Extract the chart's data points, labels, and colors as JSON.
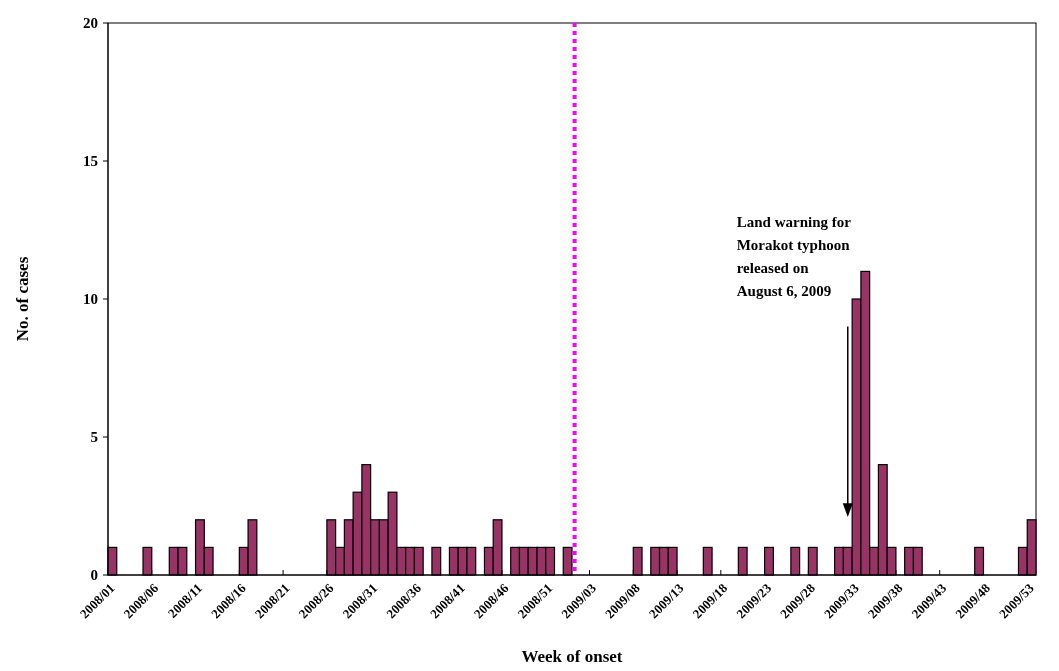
{
  "chart_data": {
    "type": "bar",
    "xlabel": "Week of onset",
    "ylabel": "No. of cases",
    "categories": [
      "2008/01",
      null,
      null,
      null,
      null,
      "2008/06",
      null,
      null,
      null,
      null,
      "2008/11",
      null,
      null,
      null,
      null,
      "2008/16",
      null,
      null,
      null,
      null,
      "2008/21",
      null,
      null,
      null,
      null,
      "2008/26",
      null,
      null,
      null,
      null,
      "2008/31",
      null,
      null,
      null,
      null,
      "2008/36",
      null,
      null,
      null,
      null,
      "2008/41",
      null,
      null,
      null,
      null,
      "2008/46",
      null,
      null,
      null,
      null,
      "2008/51",
      null,
      null,
      null,
      null,
      "2009/03",
      null,
      null,
      null,
      null,
      "2009/08",
      null,
      null,
      null,
      null,
      "2009/13",
      null,
      null,
      null,
      null,
      "2009/18",
      null,
      null,
      null,
      null,
      "2009/23",
      null,
      null,
      null,
      null,
      "2009/28",
      null,
      null,
      null,
      null,
      "2009/33",
      null,
      null,
      null,
      null,
      "2009/38",
      null,
      null,
      null,
      null,
      "2009/43",
      null,
      null,
      null,
      null,
      "2009/48",
      null,
      null,
      null,
      null,
      "2009/53"
    ],
    "values": [
      1,
      0,
      0,
      0,
      1,
      0,
      0,
      1,
      1,
      0,
      2,
      1,
      0,
      0,
      0,
      1,
      2,
      0,
      0,
      0,
      0,
      0,
      0,
      0,
      0,
      2,
      1,
      2,
      3,
      4,
      2,
      2,
      3,
      1,
      1,
      1,
      0,
      1,
      0,
      1,
      1,
      1,
      0,
      1,
      2,
      0,
      1,
      1,
      1,
      1,
      1,
      0,
      1,
      0,
      0,
      0,
      0,
      0,
      0,
      0,
      1,
      0,
      1,
      1,
      1,
      0,
      0,
      0,
      1,
      0,
      0,
      0,
      1,
      0,
      0,
      1,
      0,
      0,
      1,
      0,
      1,
      0,
      0,
      1,
      1,
      10,
      11,
      1,
      4,
      1,
      0,
      1,
      1,
      0,
      0,
      0,
      0,
      0,
      0,
      1,
      0,
      0,
      0,
      0,
      1,
      2
    ],
    "color": "#993366",
    "ylim": [
      0,
      20
    ],
    "yticks": [
      0,
      5,
      10,
      15,
      20
    ],
    "grid": false,
    "annotations": [
      "Land warning for Morakot typhoon released on August 6, 2009"
    ]
  }
}
